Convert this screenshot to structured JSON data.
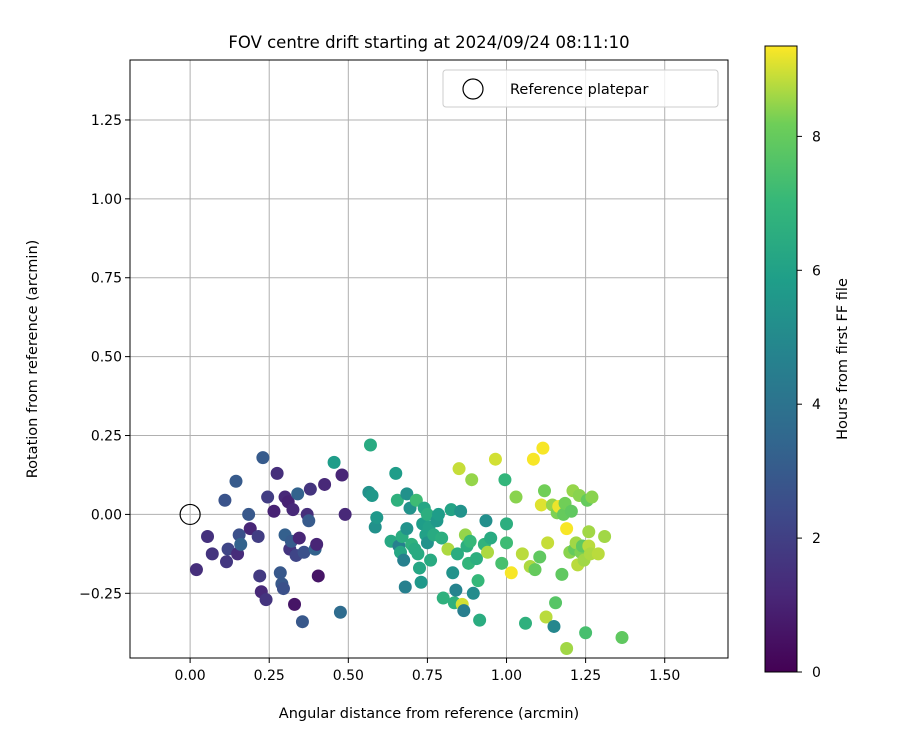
{
  "chart_data": {
    "type": "scatter",
    "title": "FOV centre drift starting at 2024/09/24 08:11:10",
    "xlabel": "Angular distance from reference (arcmin)",
    "ylabel": "Rotation from reference (arcmin)",
    "xlim": [
      -0.19,
      1.7
    ],
    "ylim": [
      -0.455,
      1.44
    ],
    "xticks": [
      0.0,
      0.25,
      0.5,
      0.75,
      1.0,
      1.25,
      1.5
    ],
    "xtick_labels": [
      "0.00",
      "0.25",
      "0.50",
      "0.75",
      "1.00",
      "1.25",
      "1.50"
    ],
    "yticks": [
      -0.25,
      0.0,
      0.25,
      0.5,
      0.75,
      1.0,
      1.25
    ],
    "ytick_labels": [
      "−0.25",
      "0.00",
      "0.25",
      "0.50",
      "0.75",
      "1.00",
      "1.25"
    ],
    "grid": true,
    "legend": {
      "placement": "top-right",
      "entries": [
        "Reference platepar"
      ]
    },
    "reference_point": {
      "name": "Reference platepar",
      "x": 0.0,
      "y": 0.0
    },
    "colorbar": {
      "label": "Hours from first FF file",
      "colormap": "viridis",
      "range": [
        0,
        9.35
      ],
      "ticks": [
        0,
        2,
        4,
        6,
        8
      ],
      "tick_labels": [
        "0",
        "2",
        "4",
        "6",
        "8"
      ]
    },
    "series": [
      {
        "colored_by": "Hours from first FF file",
        "points": [
          [
            0.02,
            -0.175,
            1.4
          ],
          [
            0.055,
            -0.07,
            1.5
          ],
          [
            0.07,
            -0.125,
            1.6
          ],
          [
            0.11,
            0.045,
            2.7
          ],
          [
            0.115,
            -0.15,
            1.7
          ],
          [
            0.12,
            -0.11,
            2.2
          ],
          [
            0.145,
            0.105,
            3.0
          ],
          [
            0.15,
            -0.125,
            1.3
          ],
          [
            0.155,
            -0.065,
            2.6
          ],
          [
            0.16,
            -0.095,
            3.3
          ],
          [
            0.185,
            0.0,
            2.9
          ],
          [
            0.19,
            -0.045,
            1.1
          ],
          [
            0.215,
            -0.07,
            1.9
          ],
          [
            0.22,
            -0.195,
            1.8
          ],
          [
            0.225,
            -0.245,
            1.2
          ],
          [
            0.23,
            0.18,
            3.0
          ],
          [
            0.24,
            -0.27,
            1.6
          ],
          [
            0.245,
            0.055,
            1.9
          ],
          [
            0.265,
            0.01,
            1.0
          ],
          [
            0.275,
            0.13,
            1.4
          ],
          [
            0.285,
            -0.185,
            2.9
          ],
          [
            0.29,
            -0.22,
            2.9
          ],
          [
            0.295,
            -0.235,
            2.6
          ],
          [
            0.3,
            0.055,
            1.2
          ],
          [
            0.3,
            -0.065,
            3.2
          ],
          [
            0.31,
            0.04,
            1.0
          ],
          [
            0.315,
            -0.11,
            1.6
          ],
          [
            0.32,
            -0.085,
            3.0
          ],
          [
            0.325,
            0.015,
            1.2
          ],
          [
            0.33,
            -0.285,
            0.6
          ],
          [
            0.335,
            -0.13,
            2.2
          ],
          [
            0.34,
            0.065,
            3.3
          ],
          [
            0.345,
            -0.075,
            1.1
          ],
          [
            0.355,
            -0.34,
            2.9
          ],
          [
            0.36,
            -0.12,
            2.6
          ],
          [
            0.37,
            0.0,
            1.4
          ],
          [
            0.375,
            -0.02,
            3.0
          ],
          [
            0.38,
            0.08,
            1.6
          ],
          [
            0.395,
            -0.11,
            3.3
          ],
          [
            0.405,
            -0.195,
            0.6
          ],
          [
            0.4,
            -0.095,
            1.1
          ],
          [
            0.425,
            0.095,
            1.2
          ],
          [
            0.455,
            0.165,
            5.8
          ],
          [
            0.475,
            -0.31,
            3.7
          ],
          [
            0.48,
            0.125,
            1.1
          ],
          [
            0.49,
            0.0,
            1.2
          ],
          [
            0.565,
            0.07,
            5.3
          ],
          [
            0.57,
            0.22,
            6.4
          ],
          [
            0.575,
            0.06,
            5.6
          ],
          [
            0.585,
            -0.04,
            5.3
          ],
          [
            0.59,
            -0.01,
            5.6
          ],
          [
            0.635,
            -0.085,
            6.3
          ],
          [
            0.65,
            0.13,
            5.8
          ],
          [
            0.655,
            0.045,
            6.7
          ],
          [
            0.66,
            -0.1,
            4.6
          ],
          [
            0.665,
            -0.12,
            6.2
          ],
          [
            0.67,
            -0.07,
            6.5
          ],
          [
            0.675,
            -0.145,
            4.6
          ],
          [
            0.68,
            -0.23,
            4.6
          ],
          [
            0.685,
            0.065,
            5.3
          ],
          [
            0.685,
            -0.045,
            5.4
          ],
          [
            0.695,
            0.02,
            5.4
          ],
          [
            0.7,
            -0.095,
            6.7
          ],
          [
            0.71,
            -0.11,
            6.4
          ],
          [
            0.715,
            0.045,
            7.2
          ],
          [
            0.72,
            -0.125,
            6.4
          ],
          [
            0.725,
            -0.17,
            6.2
          ],
          [
            0.73,
            -0.215,
            5.6
          ],
          [
            0.735,
            -0.03,
            5.8
          ],
          [
            0.74,
            0.02,
            6.2
          ],
          [
            0.745,
            -0.065,
            6.0
          ],
          [
            0.75,
            0.0,
            6.6
          ],
          [
            0.75,
            -0.09,
            5.4
          ],
          [
            0.755,
            -0.04,
            6.0
          ],
          [
            0.76,
            -0.145,
            6.4
          ],
          [
            0.77,
            -0.065,
            6.4
          ],
          [
            0.78,
            -0.02,
            5.6
          ],
          [
            0.785,
            0.0,
            5.8
          ],
          [
            0.795,
            -0.075,
            6.6
          ],
          [
            0.8,
            -0.265,
            6.7
          ],
          [
            0.815,
            -0.11,
            8.7
          ],
          [
            0.825,
            0.015,
            6.1
          ],
          [
            0.83,
            -0.185,
            5.4
          ],
          [
            0.835,
            -0.28,
            6.7
          ],
          [
            0.84,
            -0.24,
            4.7
          ],
          [
            0.845,
            -0.125,
            6.5
          ],
          [
            0.85,
            0.145,
            8.9
          ],
          [
            0.855,
            0.01,
            5.4
          ],
          [
            0.86,
            -0.285,
            9.0
          ],
          [
            0.865,
            -0.305,
            4.5
          ],
          [
            0.87,
            -0.065,
            8.5
          ],
          [
            0.875,
            -0.1,
            6.6
          ],
          [
            0.88,
            -0.155,
            6.9
          ],
          [
            0.885,
            -0.085,
            7.0
          ],
          [
            0.89,
            0.11,
            8.5
          ],
          [
            0.895,
            -0.25,
            5.1
          ],
          [
            0.905,
            -0.14,
            6.6
          ],
          [
            0.91,
            -0.21,
            7.0
          ],
          [
            0.915,
            -0.335,
            6.5
          ],
          [
            0.93,
            -0.095,
            6.8
          ],
          [
            0.935,
            -0.02,
            5.2
          ],
          [
            0.94,
            -0.12,
            8.7
          ],
          [
            0.95,
            -0.075,
            6.4
          ],
          [
            0.965,
            0.175,
            9.0
          ],
          [
            0.985,
            -0.155,
            7.4
          ],
          [
            0.995,
            0.11,
            6.9
          ],
          [
            1.0,
            -0.03,
            6.6
          ],
          [
            1.0,
            -0.09,
            7.2
          ],
          [
            1.015,
            -0.185,
            9.3
          ],
          [
            1.03,
            0.055,
            8.4
          ],
          [
            1.05,
            -0.125,
            8.8
          ],
          [
            1.06,
            -0.345,
            6.7
          ],
          [
            1.075,
            -0.165,
            8.7
          ],
          [
            1.085,
            0.175,
            9.3
          ],
          [
            1.09,
            -0.175,
            8.0
          ],
          [
            1.105,
            -0.135,
            7.9
          ],
          [
            1.11,
            0.03,
            9.1
          ],
          [
            1.115,
            0.21,
            9.3
          ],
          [
            1.12,
            0.075,
            8.2
          ],
          [
            1.125,
            -0.325,
            8.8
          ],
          [
            1.13,
            -0.09,
            8.9
          ],
          [
            1.145,
            0.03,
            8.5
          ],
          [
            1.15,
            -0.355,
            4.9
          ],
          [
            1.155,
            -0.28,
            7.7
          ],
          [
            1.16,
            0.005,
            8.3
          ],
          [
            1.165,
            0.025,
            9.2
          ],
          [
            1.175,
            -0.19,
            7.9
          ],
          [
            1.18,
            0.0,
            8.0
          ],
          [
            1.185,
            0.035,
            8.2
          ],
          [
            1.19,
            -0.425,
            8.6
          ],
          [
            1.19,
            -0.045,
            9.3
          ],
          [
            1.2,
            -0.12,
            8.4
          ],
          [
            1.205,
            0.01,
            7.9
          ],
          [
            1.21,
            0.075,
            8.5
          ],
          [
            1.215,
            -0.11,
            8.0
          ],
          [
            1.22,
            -0.09,
            8.6
          ],
          [
            1.225,
            -0.16,
            8.8
          ],
          [
            1.23,
            0.06,
            8.4
          ],
          [
            1.235,
            -0.12,
            8.3
          ],
          [
            1.24,
            -0.1,
            7.9
          ],
          [
            1.245,
            -0.145,
            8.6
          ],
          [
            1.25,
            -0.375,
            7.4
          ],
          [
            1.255,
            0.045,
            8.0
          ],
          [
            1.26,
            -0.055,
            8.6
          ],
          [
            1.26,
            -0.1,
            8.8
          ],
          [
            1.265,
            -0.125,
            8.7
          ],
          [
            1.27,
            0.055,
            8.4
          ],
          [
            1.29,
            -0.125,
            8.8
          ],
          [
            1.31,
            -0.07,
            8.6
          ],
          [
            1.365,
            -0.39,
            7.9
          ]
        ]
      }
    ]
  }
}
